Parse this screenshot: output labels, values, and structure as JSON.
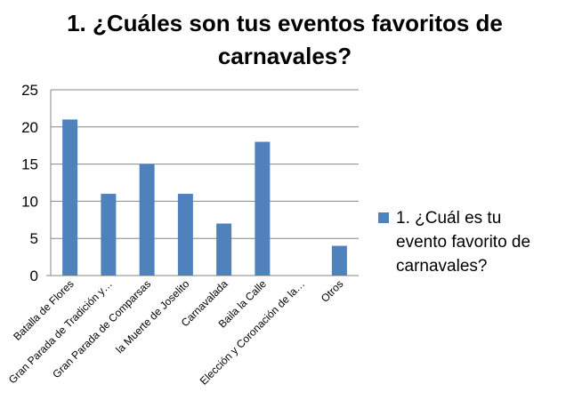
{
  "chart_data": {
    "type": "bar",
    "title": "1. ¿Cuáles son tus eventos favoritos de carnavales?",
    "xlabel": "",
    "ylabel": "",
    "categories": [
      "Batalla de Flores",
      "Gran Parada de Tradición y…",
      "Gran Parada de Comparsas",
      "la Muerte de Joselito",
      "Carnavalada",
      "Baila la Calle",
      "Elección y Coronación de la…",
      "Otros"
    ],
    "series": [
      {
        "name": "1. ¿Cuál es tu evento favorito de carnavales?",
        "values": [
          21,
          11,
          15,
          11,
          7,
          18,
          0,
          4
        ],
        "color": "#4F81BD"
      }
    ],
    "ylim": [
      0,
      25
    ],
    "yticks": [
      0,
      5,
      10,
      15,
      20,
      25
    ],
    "grid": true,
    "legend_position": "right"
  }
}
